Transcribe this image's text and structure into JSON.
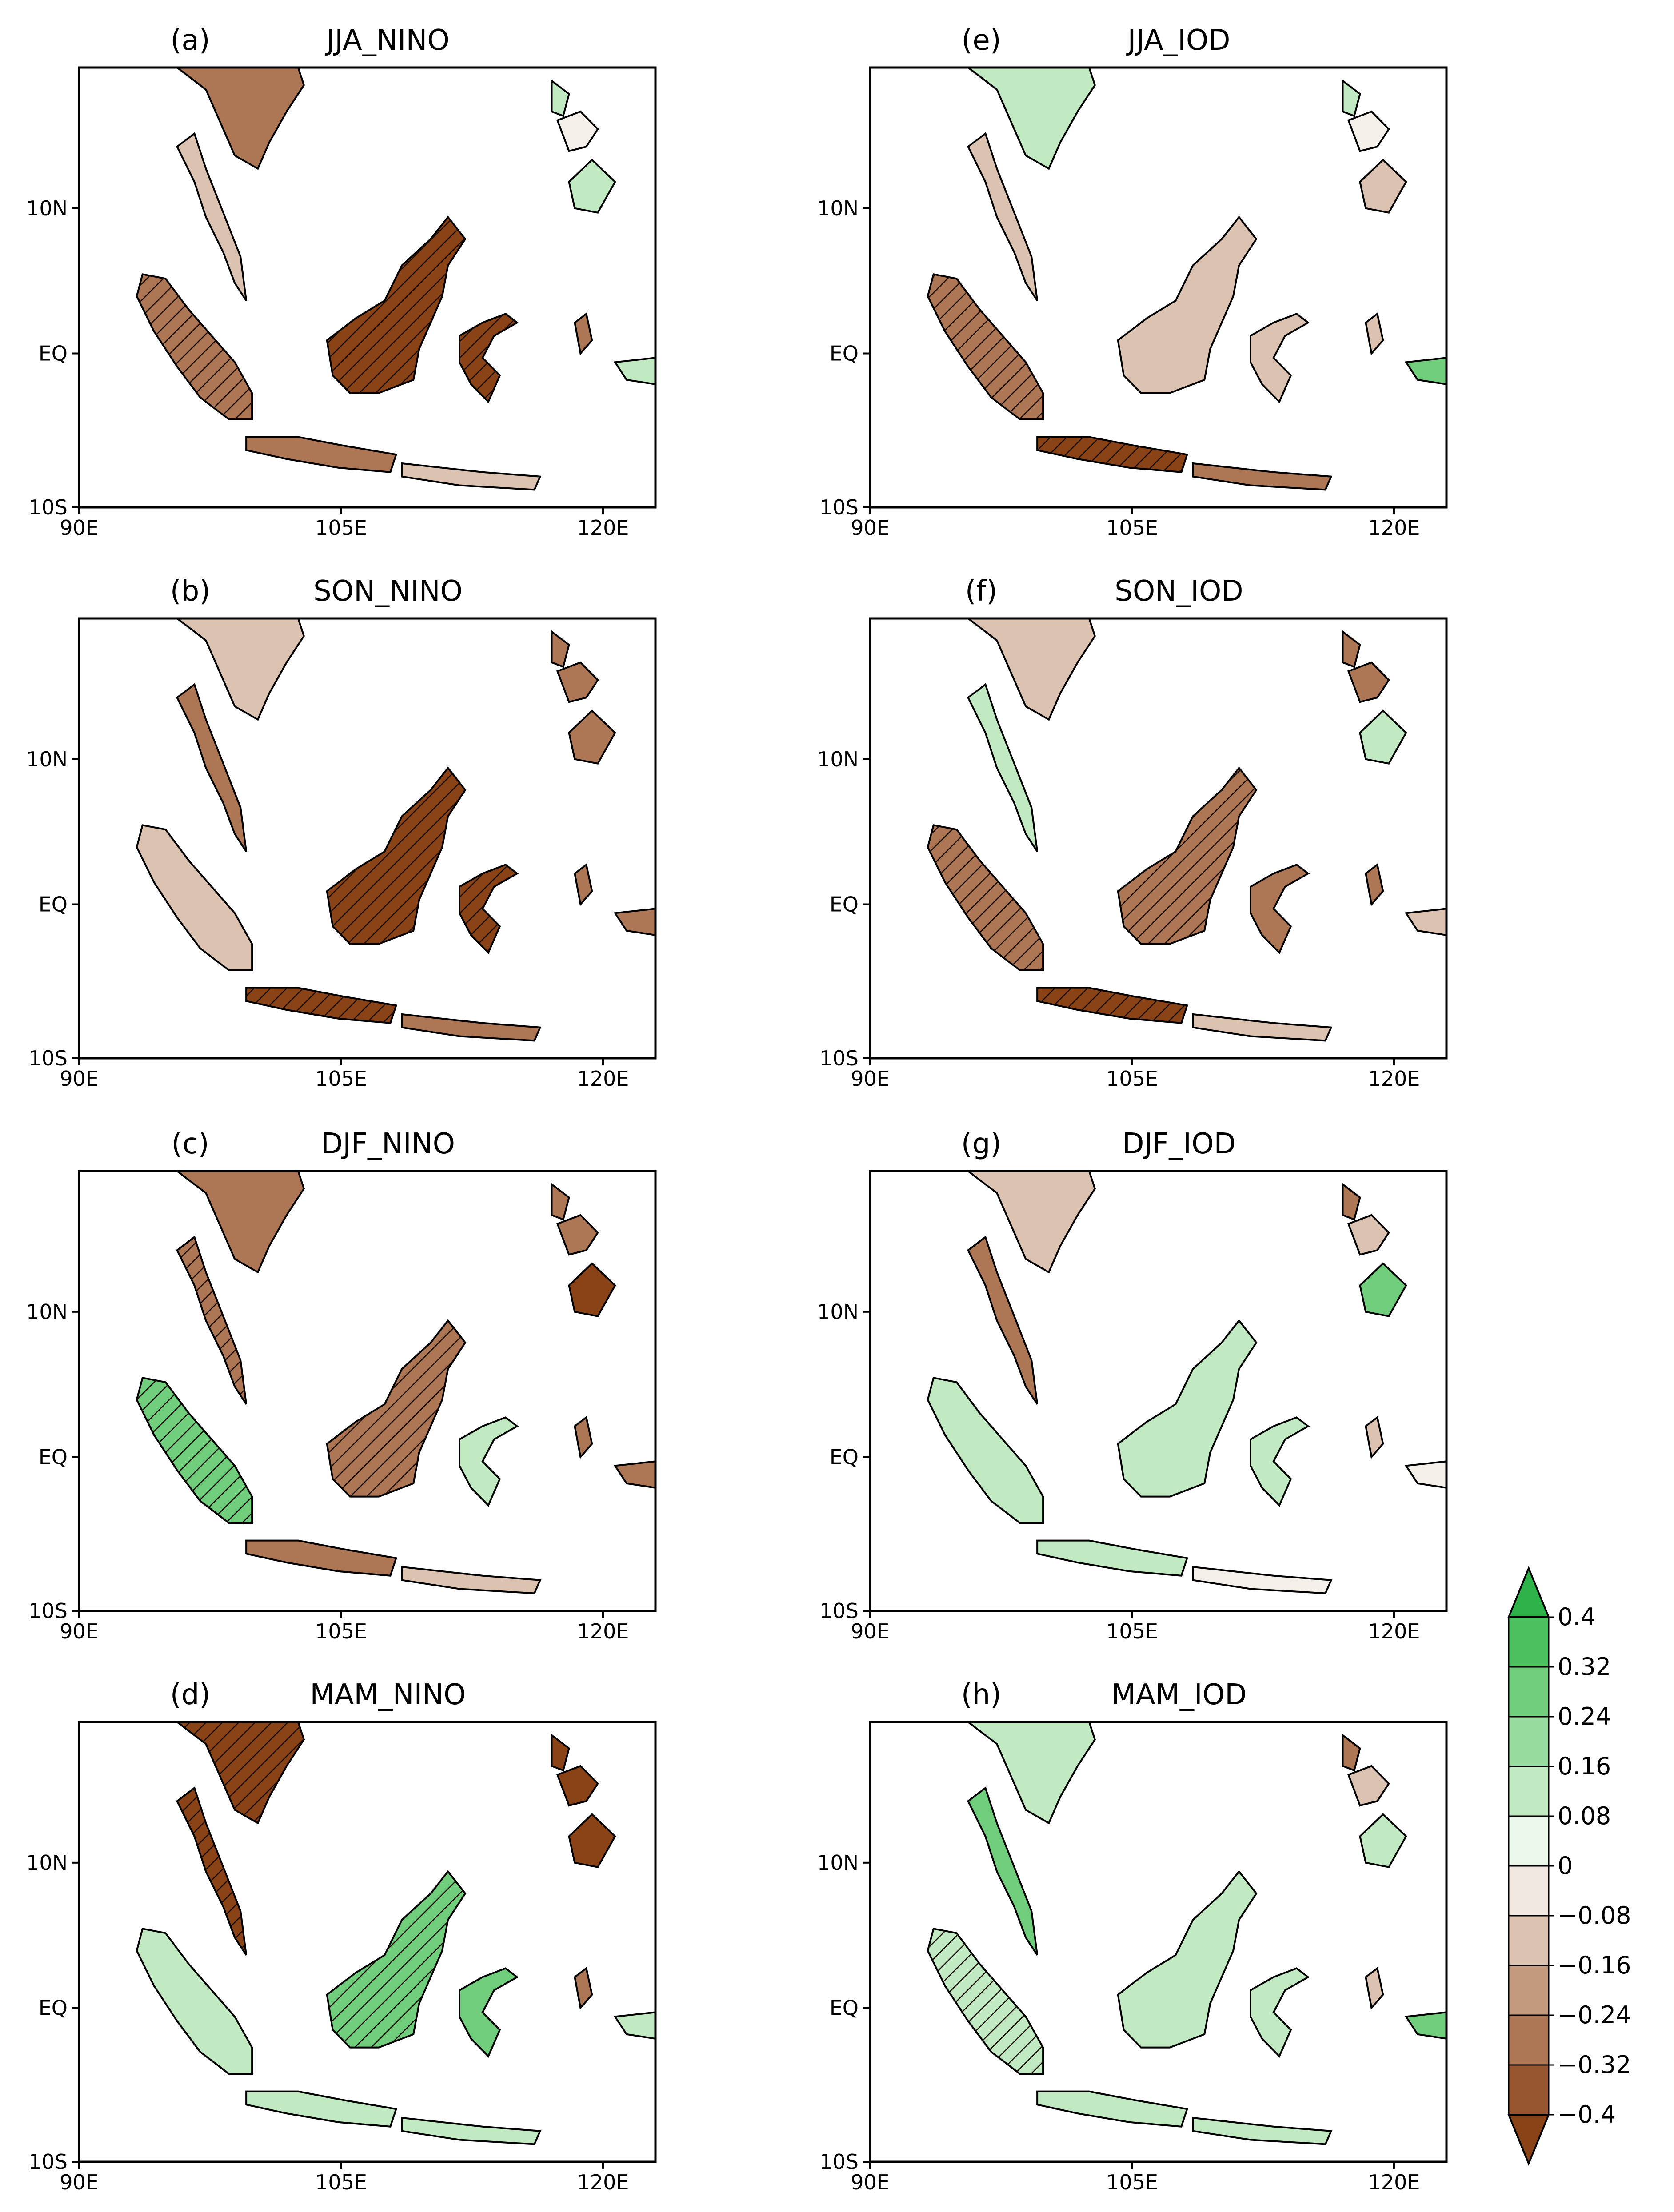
{
  "panels": [
    {
      "letter": "(a)",
      "title": "JJA_NINO"
    },
    {
      "letter": "(b)",
      "title": "SON_NINO"
    },
    {
      "letter": "(c)",
      "title": "DJF_NINO"
    },
    {
      "letter": "(d)",
      "title": "MAM_NINO"
    },
    {
      "letter": "(e)",
      "title": "JJA_IOD"
    },
    {
      "letter": "(f)",
      "title": "SON_IOD"
    },
    {
      "letter": "(g)",
      "title": "DJF_IOD"
    },
    {
      "letter": "(h)",
      "title": "MAM_IOD"
    }
  ],
  "lon_ticks": [
    "90E",
    "105E",
    "120E"
  ],
  "lat_ticks": [
    "10N",
    "EQ",
    "10S"
  ],
  "colorbar": {
    "labels": [
      "0.4",
      "0.32",
      "0.24",
      "0.16",
      "0.08",
      "0",
      "−0.08",
      "−0.16",
      "−0.24",
      "−0.32",
      "−0.4"
    ],
    "colors_top_to_bottom": [
      "#2eb24a",
      "#4cc05f",
      "#6fcd7c",
      "#97db9e",
      "#c1eac3",
      "#edf8ec",
      "#f1e8e1",
      "#dcc2b0",
      "#c49a7f",
      "#ad7654",
      "#975630",
      "#8a4316"
    ]
  },
  "colors": {
    "dry_strong": "#8a4316",
    "dry_mid": "#ad7654",
    "dry_light": "#dcc2b0",
    "wet_light": "#c1eac3",
    "wet_mid": "#6fcd7c",
    "neutral": "#f4efe8"
  }
}
